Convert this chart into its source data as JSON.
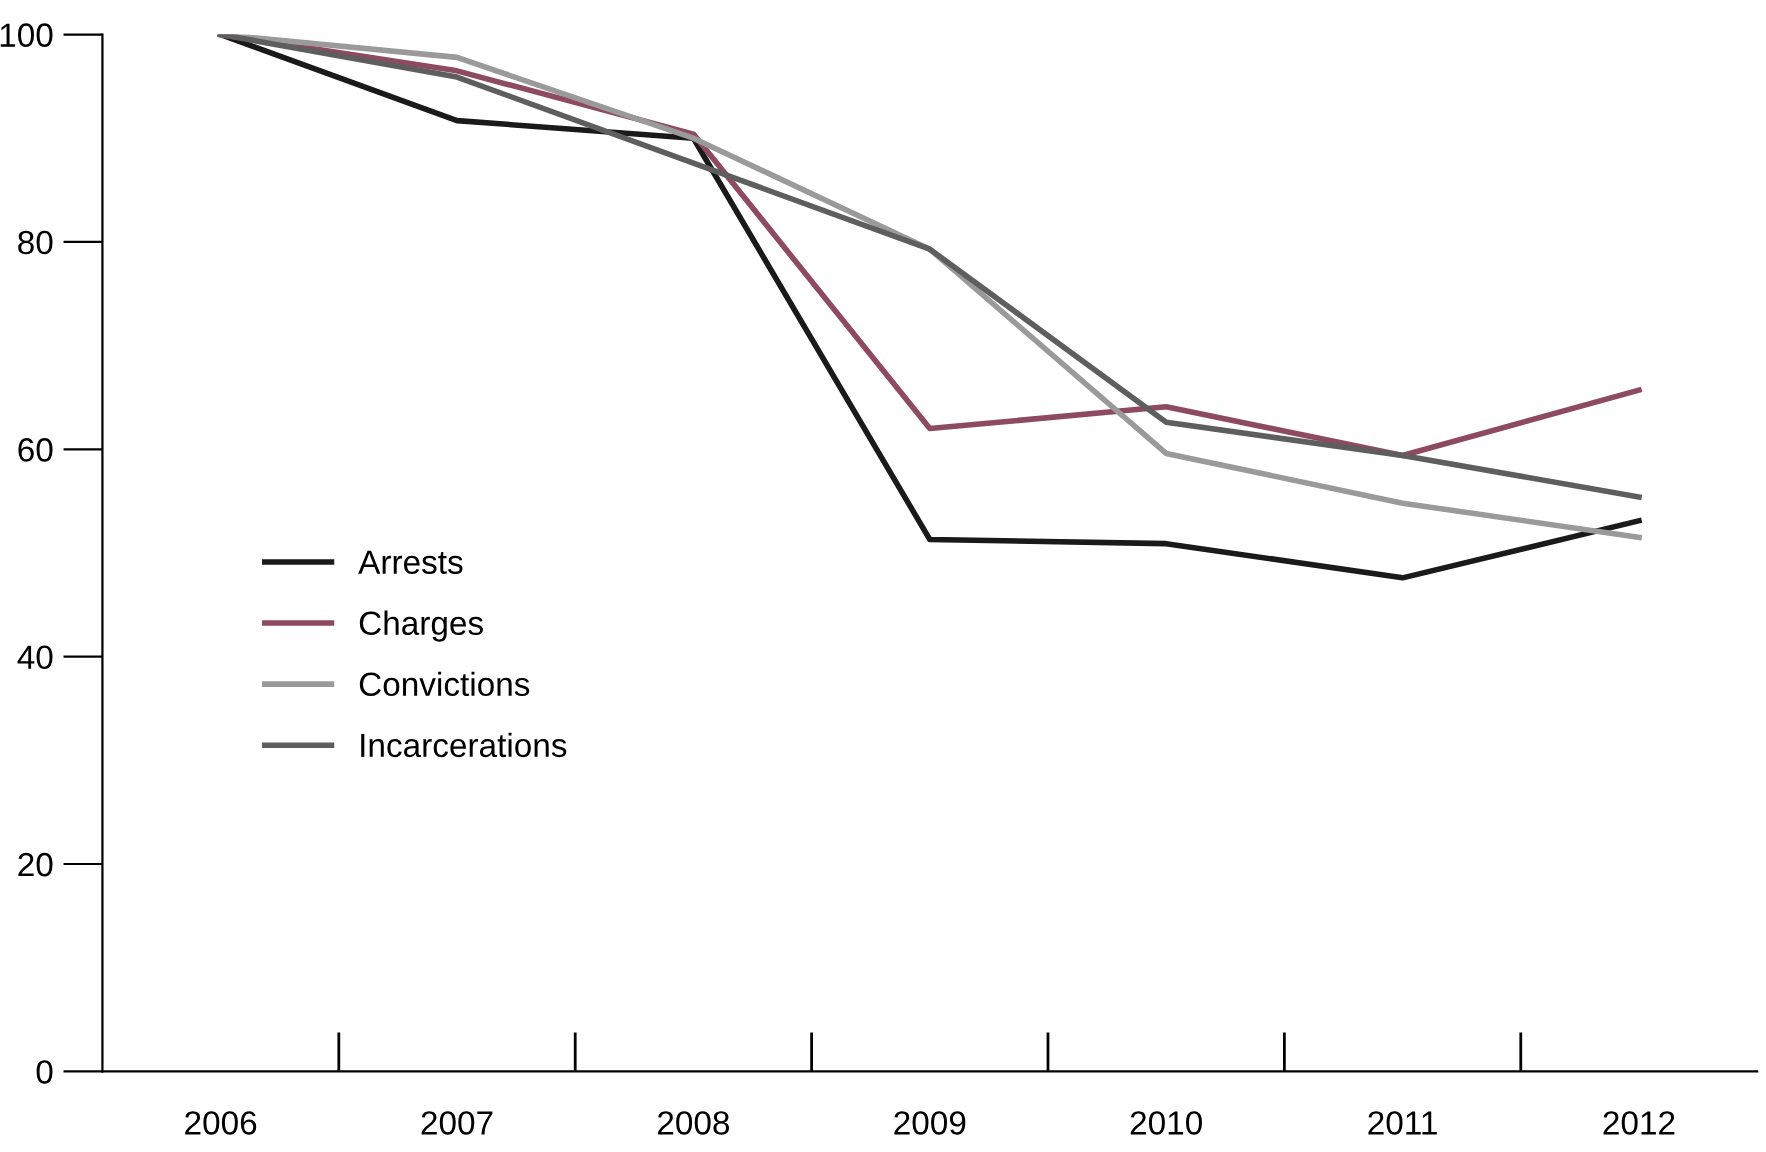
{
  "chart_data": {
    "type": "line",
    "categories": [
      "2006",
      "2007",
      "2008",
      "2009",
      "2010",
      "2011",
      "2012"
    ],
    "series": [
      {
        "name": "Arrests",
        "color": "#1a1a1a",
        "values": [
          100,
          91.7,
          90,
          51.3,
          50.9,
          47.6,
          53.1
        ]
      },
      {
        "name": "Charges",
        "color": "#8e4a63",
        "values": [
          100,
          96.5,
          90.4,
          62,
          64.1,
          59.4,
          65.7
        ]
      },
      {
        "name": "Convictions",
        "color": "#9a9a9a",
        "values": [
          100,
          97.8,
          90,
          79.3,
          59.6,
          54.8,
          51.5
        ]
      },
      {
        "name": "Incarcerations",
        "color": "#5e5e5e",
        "values": [
          100,
          95.9,
          87.6,
          79.3,
          62.6,
          59.4,
          55.4
        ]
      }
    ],
    "ylim": [
      0,
      100
    ],
    "yticks": [
      0,
      20,
      40,
      60,
      80,
      100
    ],
    "grid": false,
    "legend": "left",
    "marker": "none",
    "line_style": "solid"
  }
}
